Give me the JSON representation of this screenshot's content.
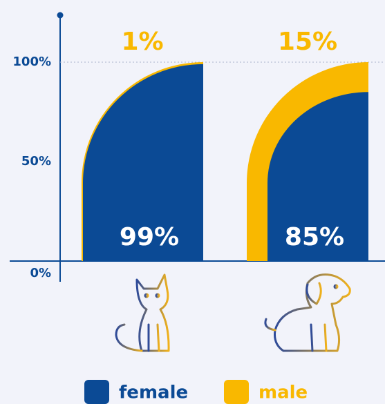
{
  "chart_data": {
    "type": "stacked_bar",
    "categories": [
      null,
      null
    ],
    "series": [
      {
        "name": "female",
        "color": "#0b4a95",
        "values": [
          99,
          85
        ],
        "value_labels": [
          "99%",
          "85%"
        ]
      },
      {
        "name": "male",
        "color": "#f9b800",
        "values": [
          1,
          15
        ],
        "value_labels": [
          "1%",
          "15%"
        ]
      }
    ],
    "ylim": [
      0,
      100
    ],
    "yticks": [
      {
        "value": 0,
        "label": "0%"
      },
      {
        "value": 50,
        "label": "50%"
      },
      {
        "value": 100,
        "label": "100%"
      }
    ],
    "reference_line": 100,
    "legend": "bottom"
  }
}
